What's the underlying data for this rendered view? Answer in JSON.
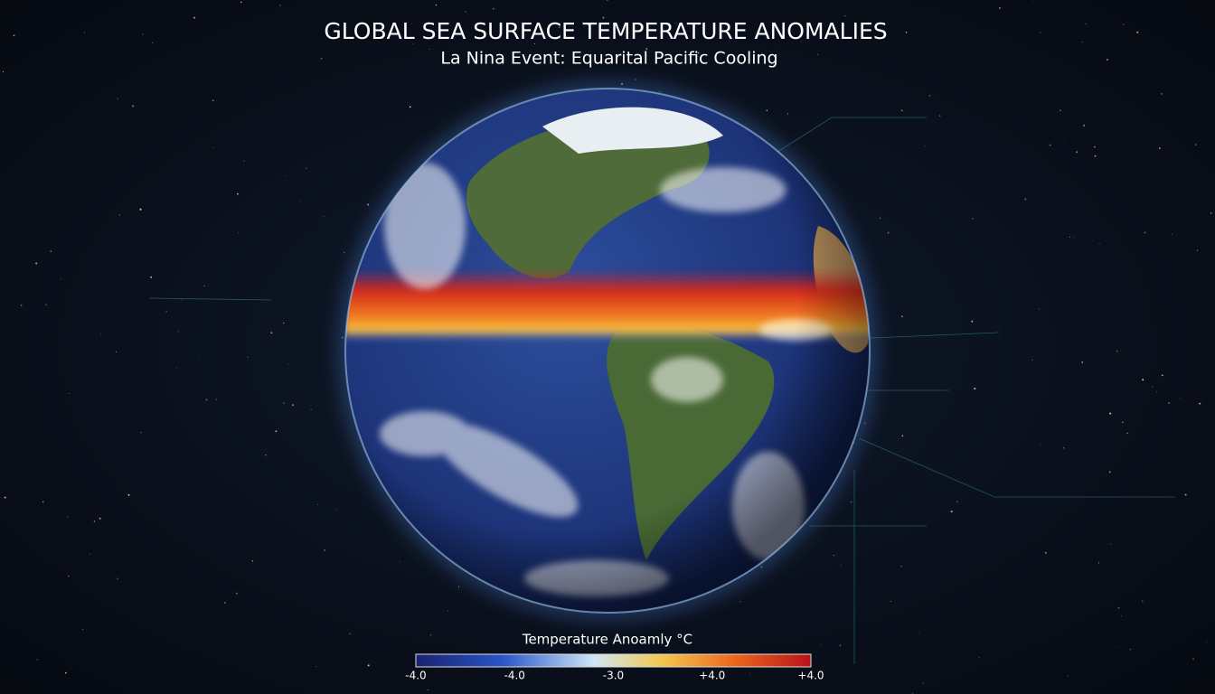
{
  "header": {
    "title": "GLOBAL SEA SURFACE TEMPERATURE ANOMALIES",
    "subtitle": "La Nina Event: Equarital Pacific Cooling"
  },
  "colorbar": {
    "label": "Temperature Anoamly  °C",
    "ticks": [
      "-4.0",
      "-4.0",
      "-3.0",
      "+4.0",
      "+4.0"
    ]
  }
}
